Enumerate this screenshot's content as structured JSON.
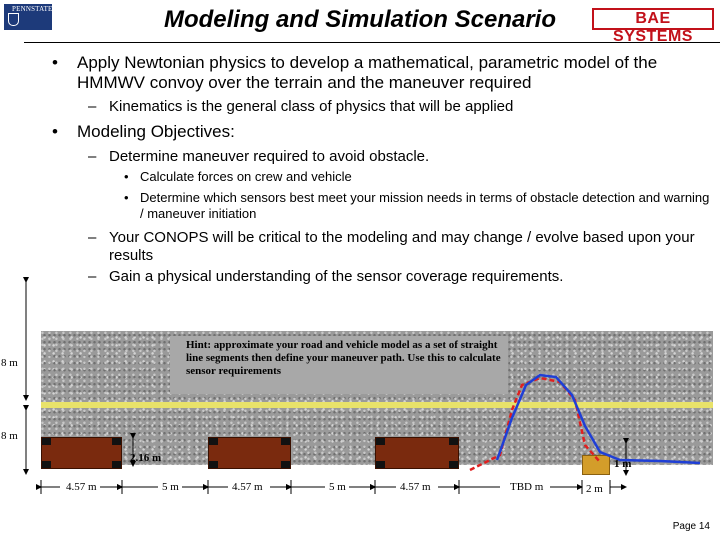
{
  "header": {
    "title": "Modeling and Simulation Scenario",
    "left_logo": "PENNSTATE",
    "right_logo": "BAE SYSTEMS"
  },
  "bullets": {
    "b1": "Apply Newtonian physics to develop a mathematical, parametric model of the HMMWV convoy over the terrain and the maneuver required",
    "b1_sub1": "Kinematics is the general class of physics that will be applied",
    "b2": "Modeling Objectives:",
    "b2_sub1": "Determine maneuver required to avoid obstacle.",
    "b2_sub1_a": "Calculate forces on crew and vehicle",
    "b2_sub1_b": "Determine which sensors best meet your mission needs in terms of obstacle detection and warning / maneuver initiation",
    "b2_sub2": "Your CONOPS will be critical to the modeling and may change / evolve based upon your results",
    "b2_sub3": "Gain a physical understanding of the sensor coverage requirements."
  },
  "diagram": {
    "hint": "Hint:  approximate your road and vehicle model as a set of straight line segments  then define your maneuver path.  Use this to calculate sensor requirements",
    "left_8m_top": "8 m",
    "left_8m_bottom": "8 m",
    "vehicle_width": "2.16 m",
    "obstacle_size": "1 m",
    "dims": [
      "4.57 m",
      "5 m",
      "4.57 m",
      "5 m",
      "4.57 m",
      "TBD m",
      "2 m"
    ]
  },
  "footer": {
    "page": "Page 14"
  },
  "colors": {
    "road": "#e8e26a",
    "vehicle": "#7a2a0e",
    "path_red": "#e02020",
    "path_blue": "#1f3fd6",
    "bae_red": "#c2111a"
  }
}
